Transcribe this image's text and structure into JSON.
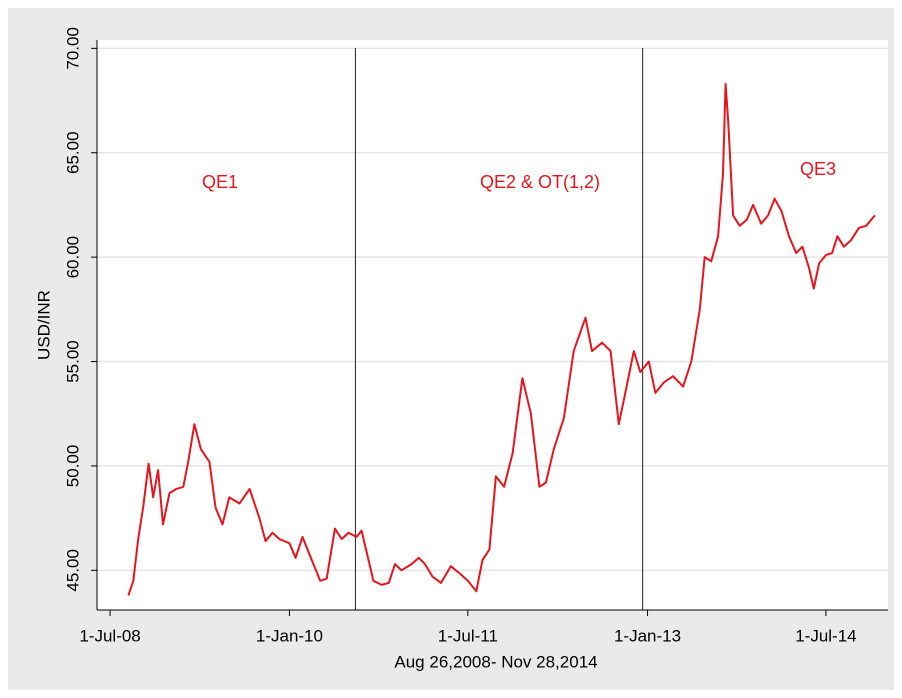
{
  "chart_data": {
    "type": "line",
    "x_label": "Aug 26,2008- Nov 28,2014",
    "y_label": "USD/INR",
    "xlim": [
      "2008-05-22",
      "2015-01-07"
    ],
    "xticks": [
      {
        "value": "2008-07-01",
        "label": "1-Jul-08"
      },
      {
        "value": "2010-01-01",
        "label": "1-Jan-10"
      },
      {
        "value": "2011-07-01",
        "label": "1-Jul-11"
      },
      {
        "value": "2013-01-01",
        "label": "1-Jan-13"
      },
      {
        "value": "2014-07-01",
        "label": "1-Jul-14"
      }
    ],
    "ylim": [
      43.1,
      70.4
    ],
    "yticks": [
      {
        "value": 45,
        "label": "45.00"
      },
      {
        "value": 50,
        "label": "50.00"
      },
      {
        "value": 55,
        "label": "55.00"
      },
      {
        "value": 60,
        "label": "60.00"
      },
      {
        "value": 65,
        "label": "65.00"
      },
      {
        "value": 70,
        "label": "70.00"
      }
    ],
    "grid": true,
    "vlines": [
      "2010-07-22",
      "2012-12-17"
    ],
    "annotations": [
      "QE1",
      "QE2 & OT(1,2)",
      "QE3"
    ],
    "x": [
      "2008-08-26",
      "2008-09-10",
      "2008-09-25",
      "2008-10-10",
      "2008-10-27",
      "2008-11-10",
      "2008-11-25",
      "2008-12-10",
      "2008-12-30",
      "2009-01-20",
      "2009-02-10",
      "2009-02-25",
      "2009-03-16",
      "2009-04-05",
      "2009-05-01",
      "2009-05-20",
      "2009-06-10",
      "2009-07-01",
      "2009-08-01",
      "2009-09-01",
      "2009-10-01",
      "2009-10-20",
      "2009-11-10",
      "2009-12-01",
      "2010-01-01",
      "2010-01-20",
      "2010-02-10",
      "2010-03-10",
      "2010-04-05",
      "2010-04-25",
      "2010-05-20",
      "2010-06-10",
      "2010-07-01",
      "2010-07-25",
      "2010-08-10",
      "2010-08-25",
      "2010-09-15",
      "2010-10-10",
      "2010-11-01",
      "2010-11-20",
      "2010-12-10",
      "2011-01-10",
      "2011-02-01",
      "2011-02-20",
      "2011-03-15",
      "2011-04-10",
      "2011-05-10",
      "2011-06-10",
      "2011-07-01",
      "2011-07-27",
      "2011-08-15",
      "2011-09-05",
      "2011-09-25",
      "2011-10-20",
      "2011-11-15",
      "2011-12-15",
      "2012-01-10",
      "2012-02-05",
      "2012-02-25",
      "2012-03-20",
      "2012-04-20",
      "2012-05-20",
      "2012-06-25",
      "2012-07-15",
      "2012-08-15",
      "2012-09-10",
      "2012-10-05",
      "2012-10-25",
      "2012-11-20",
      "2012-12-10",
      "2013-01-05",
      "2013-01-25",
      "2013-02-20",
      "2013-03-20",
      "2013-04-20",
      "2013-05-15",
      "2013-06-10",
      "2013-06-25",
      "2013-07-15",
      "2013-08-05",
      "2013-08-20",
      "2013-08-28",
      "2013-09-05",
      "2013-09-20",
      "2013-10-10",
      "2013-11-01",
      "2013-11-20",
      "2013-12-15",
      "2014-01-05",
      "2014-01-25",
      "2014-02-15",
      "2014-03-10",
      "2014-04-01",
      "2014-04-20",
      "2014-05-10",
      "2014-05-25",
      "2014-06-10",
      "2014-07-01",
      "2014-07-20",
      "2014-08-05",
      "2014-08-25",
      "2014-09-15",
      "2014-10-10",
      "2014-11-01",
      "2014-11-28"
    ],
    "series": [
      {
        "name": "USD/INR",
        "color": "#e8141c",
        "values": [
          43.8,
          44.5,
          46.5,
          48.0,
          50.1,
          48.5,
          49.8,
          47.2,
          48.7,
          48.9,
          49.0,
          50.2,
          52.0,
          50.8,
          50.2,
          48.0,
          47.2,
          48.5,
          48.2,
          48.9,
          47.5,
          46.4,
          46.8,
          46.5,
          46.3,
          45.6,
          46.6,
          45.5,
          44.5,
          44.6,
          47.0,
          46.5,
          46.8,
          46.6,
          46.9,
          45.9,
          44.5,
          44.3,
          44.4,
          45.3,
          45.0,
          45.3,
          45.6,
          45.3,
          44.7,
          44.4,
          45.2,
          44.8,
          44.5,
          44.0,
          45.5,
          46.0,
          49.5,
          49.0,
          50.6,
          54.2,
          52.5,
          49.0,
          49.2,
          50.8,
          52.3,
          55.5,
          57.1,
          55.5,
          55.9,
          55.5,
          52.0,
          53.5,
          55.5,
          54.5,
          55.0,
          53.5,
          54.0,
          54.3,
          53.8,
          55.0,
          57.5,
          60.0,
          59.8,
          61.0,
          64.0,
          68.3,
          66.5,
          62.0,
          61.5,
          61.8,
          62.5,
          61.6,
          62.0,
          62.8,
          62.2,
          61.0,
          60.2,
          60.5,
          59.5,
          58.5,
          59.7,
          60.1,
          60.2,
          61.0,
          60.5,
          60.8,
          61.4,
          61.5,
          62.0
        ]
      }
    ]
  }
}
